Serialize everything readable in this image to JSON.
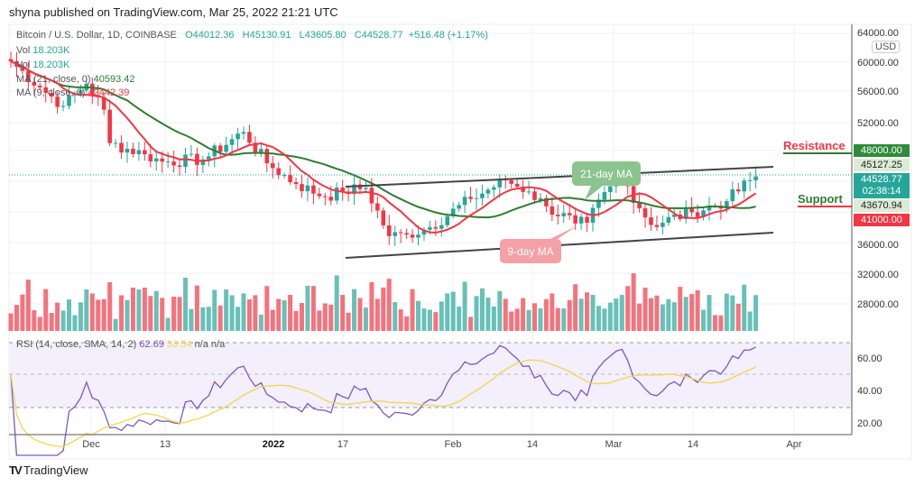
{
  "header": {
    "published": "shyna published on TradingView.com, Mar 25, 2022 21:21 UTC"
  },
  "legend": {
    "symbol": "Bitcoin / U.S. Dollar, 1D, COINBASE",
    "open": "O44012.36",
    "high": "H45130.91",
    "low": "L43605.80",
    "close": "C44528.77",
    "change": "+516.48 (+1.17%)",
    "vol1_label": "Vol",
    "vol1": "18.203K",
    "vol2_label": "Vol",
    "vol2": "18.203K",
    "ma21_label": "MA (21, close, 0)",
    "ma21": "40593.42",
    "ma9_label": "MA (9, close, 0)",
    "ma9": "42442.39",
    "rsi_label": "RSI (14, close, SMA, 14, 2)",
    "rsi": "62.69",
    "rsi_sma": "53.54",
    "na1": "n/a",
    "na2": "n/a"
  },
  "price_scale": {
    "currency": "USD",
    "ticks": [
      "64000.00",
      "60000.00",
      "56000.00",
      "52000.00",
      "36000.00",
      "32000.00",
      "28000.00"
    ],
    "badges": {
      "resistance": "48000.00",
      "high": "45127.25",
      "last": "44528.77",
      "countdown": "02:38:14",
      "low": "43670.94",
      "support": "41000.00"
    },
    "rsi_ticks": [
      "60.00",
      "40.00",
      "20.00"
    ]
  },
  "time_axis": [
    "Dec",
    "13",
    "2022",
    "17",
    "Feb",
    "14",
    "Mar",
    "14",
    "Apr"
  ],
  "annotations": {
    "resistance": "Resistance",
    "support": "Support",
    "ma21_callout": "21-day MA",
    "ma9_callout": "9-day MA"
  },
  "colors": {
    "up": "#26a69a",
    "down": "#f23645",
    "ma21": "#2e7d32",
    "ma9": "#f23645",
    "rsi": "#7e57c2",
    "rsi_sma": "#f2d649"
  },
  "footer": {
    "brand": "TradingView"
  },
  "chart_data": {
    "type": "candlestick",
    "title": "Bitcoin / U.S. Dollar, 1D, COINBASE",
    "start": "2021-11-17",
    "end": "2022-03-25",
    "ylim": [
      24000,
      66000
    ],
    "close_keyframes": [
      [
        0,
        60000
      ],
      [
        5,
        56500
      ],
      [
        9,
        54000
      ],
      [
        13,
        57000
      ],
      [
        16,
        53500
      ],
      [
        17,
        49000
      ],
      [
        23,
        47500
      ],
      [
        26,
        46500
      ],
      [
        33,
        46800
      ],
      [
        40,
        50500
      ],
      [
        44,
        46300
      ],
      [
        49,
        43500
      ],
      [
        54,
        41800
      ],
      [
        57,
        42500
      ],
      [
        61,
        43000
      ],
      [
        65,
        36500
      ],
      [
        68,
        36700
      ],
      [
        72,
        37700
      ],
      [
        79,
        41500
      ],
      [
        85,
        44000
      ],
      [
        89,
        42500
      ],
      [
        92,
        40500
      ],
      [
        97,
        38200
      ],
      [
        99,
        38300
      ],
      [
        103,
        43200
      ],
      [
        105,
        44400
      ],
      [
        110,
        38000
      ],
      [
        117,
        39700
      ],
      [
        123,
        41200
      ],
      [
        127,
        44000
      ],
      [
        128,
        44528.77
      ]
    ]
  }
}
